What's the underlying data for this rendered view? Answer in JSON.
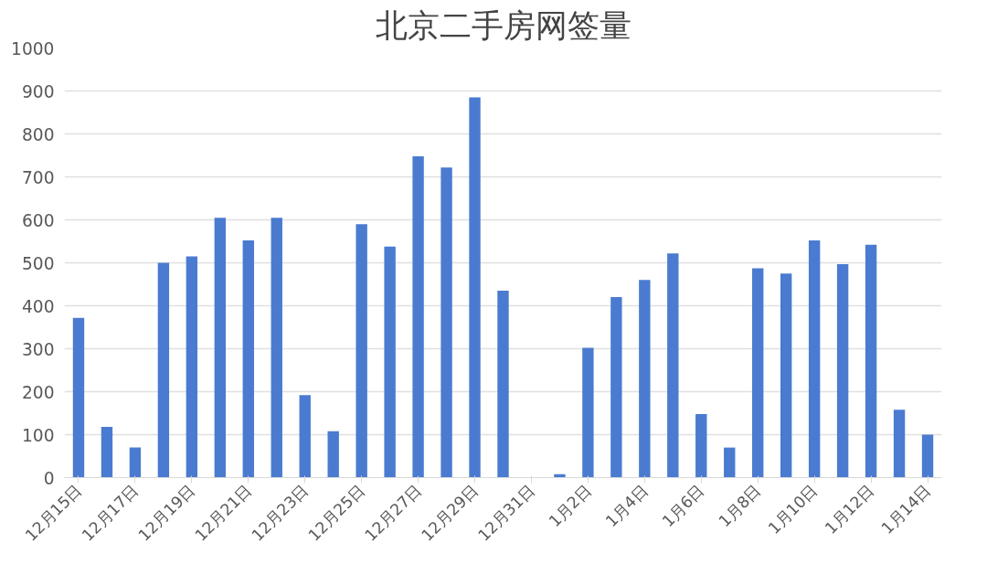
{
  "chart_data": {
    "type": "bar",
    "title": "北京二手房网签量",
    "categories": [
      "12月15日",
      null,
      "12月17日",
      null,
      "12月19日",
      null,
      "12月21日",
      null,
      "12月23日",
      null,
      "12月25日",
      null,
      "12月27日",
      null,
      "12月29日",
      null,
      "12月31日",
      null,
      "1月2日",
      null,
      "1月4日",
      null,
      "1月6日",
      null,
      "1月8日",
      null,
      "1月10日",
      null,
      "1月12日",
      null,
      "1月14日"
    ],
    "values": [
      372,
      118,
      70,
      500,
      515,
      605,
      552,
      605,
      192,
      108,
      590,
      538,
      748,
      722,
      885,
      435,
      0,
      8,
      302,
      420,
      460,
      522,
      148,
      70,
      487,
      475,
      552,
      497,
      542,
      158,
      100
    ],
    "color": "#4a7bd0",
    "ylim": [
      0,
      1000
    ],
    "yticks": [
      0,
      100,
      200,
      300,
      400,
      500,
      600,
      700,
      800,
      900,
      1000
    ],
    "grid": "y"
  }
}
